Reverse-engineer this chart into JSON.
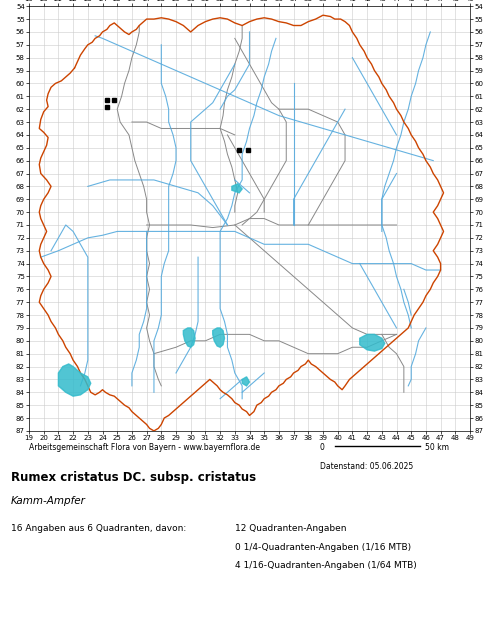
{
  "title_main": "Rumex cristatus DC. subsp. cristatus",
  "title_italic": "Kamm-Ampfer",
  "footer_left": "Arbeitsgemeinschaft Flora von Bayern - www.bayernflora.de",
  "footer_date": "Datenstand: 05.06.2025",
  "stats_line1": "16 Angaben aus 6 Quadranten, davon:",
  "stats_right1": "12 Quadranten-Angaben",
  "stats_right2": "0 1/4-Quadranten-Angaben (1/16 MTB)",
  "stats_right3": "4 1/16-Quadranten-Angaben (1/64 MTB)",
  "x_ticks": [
    19,
    20,
    21,
    22,
    23,
    24,
    25,
    26,
    27,
    28,
    29,
    30,
    31,
    32,
    33,
    34,
    35,
    36,
    37,
    38,
    39,
    40,
    41,
    42,
    43,
    44,
    45,
    46,
    47,
    48,
    49
  ],
  "y_ticks": [
    54,
    55,
    56,
    57,
    58,
    59,
    60,
    61,
    62,
    63,
    64,
    65,
    66,
    67,
    68,
    69,
    70,
    71,
    72,
    73,
    74,
    75,
    76,
    77,
    78,
    79,
    80,
    81,
    82,
    83,
    84,
    85,
    86,
    87
  ],
  "xlim": [
    19,
    49
  ],
  "ylim": [
    54,
    87
  ],
  "grid_color": "#cccccc",
  "bg_color": "#ffffff",
  "outer_border_color": "#cc4400",
  "inner_border_color": "#888888",
  "water_color": "#55aadd",
  "map_dot_color": "#000000",
  "dot_positions": [
    [
      24.3,
      61.3
    ],
    [
      24.8,
      61.3
    ],
    [
      24.3,
      61.8
    ],
    [
      33.3,
      65.2
    ],
    [
      33.9,
      65.2
    ]
  ],
  "lake_color": "#33bbcc",
  "figsize": [
    5.0,
    6.2
  ],
  "dpi": 100
}
